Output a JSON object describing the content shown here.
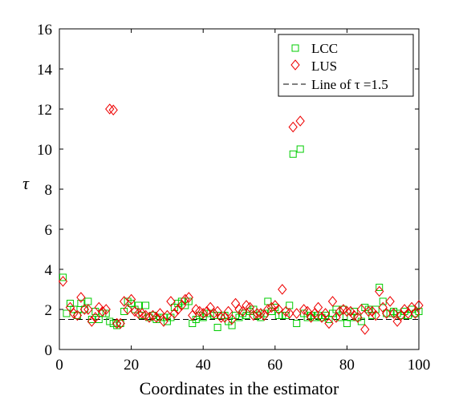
{
  "chart_data": {
    "type": "scatter",
    "xlabel": "Coordinates in the estimator",
    "ylabel": "τ",
    "xlim": [
      0,
      100
    ],
    "ylim": [
      0,
      16
    ],
    "xticks": [
      0,
      20,
      40,
      60,
      80,
      100
    ],
    "yticks": [
      0,
      2,
      4,
      6,
      8,
      10,
      12,
      14,
      16
    ],
    "grid": false,
    "legend_position": "top-right",
    "series": [
      {
        "name": "LCC",
        "marker": "square",
        "color": "#00cc00",
        "x": [
          1,
          2,
          3,
          4,
          5,
          6,
          7,
          8,
          9,
          10,
          11,
          12,
          13,
          14,
          15,
          16,
          17,
          18,
          19,
          20,
          21,
          22,
          23,
          24,
          25,
          26,
          27,
          28,
          29,
          30,
          31,
          32,
          33,
          34,
          35,
          36,
          37,
          38,
          39,
          40,
          41,
          42,
          43,
          44,
          45,
          46,
          47,
          48,
          49,
          50,
          51,
          52,
          53,
          54,
          55,
          56,
          57,
          58,
          59,
          60,
          61,
          62,
          63,
          64,
          65,
          66,
          67,
          68,
          69,
          70,
          71,
          72,
          73,
          74,
          75,
          76,
          77,
          78,
          79,
          80,
          81,
          82,
          83,
          84,
          85,
          86,
          87,
          88,
          89,
          90,
          91,
          92,
          93,
          94,
          95,
          96,
          97,
          98,
          99,
          100
        ],
        "y": [
          3.6,
          1.8,
          2.3,
          2.0,
          1.7,
          2.3,
          2.0,
          2.4,
          1.5,
          1.9,
          1.5,
          1.8,
          1.8,
          1.4,
          1.3,
          1.2,
          1.3,
          1.9,
          2.4,
          2.3,
          2.0,
          2.2,
          1.7,
          2.2,
          1.6,
          1.7,
          1.5,
          1.6,
          1.6,
          1.4,
          1.6,
          2.1,
          2.3,
          2.4,
          2.2,
          2.4,
          1.3,
          1.5,
          1.7,
          1.6,
          1.8,
          1.8,
          1.7,
          1.1,
          1.7,
          1.7,
          1.4,
          1.2,
          1.7,
          1.6,
          1.8,
          1.7,
          1.9,
          2.0,
          1.7,
          1.6,
          1.8,
          2.4,
          1.9,
          2.1,
          1.7,
          1.7,
          1.7,
          2.2,
          9.75,
          1.3,
          10.0,
          1.8,
          1.6,
          1.7,
          1.6,
          1.7,
          1.6,
          1.7,
          1.5,
          1.8,
          2.0,
          1.6,
          2.0,
          1.3,
          1.6,
          1.9,
          1.6,
          1.4,
          2.1,
          2.0,
          1.7,
          2.0,
          3.1,
          2.4,
          1.8,
          1.8,
          1.9,
          1.8,
          1.7,
          1.9,
          1.7,
          2.0,
          1.8,
          1.9
        ]
      },
      {
        "name": "LUS",
        "marker": "diamond",
        "color": "#ee0000",
        "x": [
          1,
          3,
          4,
          5,
          6,
          7,
          8,
          9,
          10,
          11,
          12,
          13,
          14,
          15,
          16,
          17,
          18,
          19,
          20,
          21,
          22,
          23,
          24,
          25,
          26,
          27,
          28,
          29,
          30,
          31,
          32,
          33,
          34,
          35,
          36,
          37,
          38,
          39,
          40,
          41,
          42,
          43,
          44,
          45,
          46,
          47,
          48,
          49,
          50,
          51,
          52,
          53,
          54,
          55,
          56,
          57,
          58,
          59,
          60,
          61,
          62,
          63,
          64,
          65,
          66,
          67,
          68,
          69,
          70,
          71,
          72,
          73,
          74,
          75,
          76,
          77,
          78,
          79,
          80,
          81,
          82,
          83,
          84,
          85,
          86,
          87,
          88,
          89,
          90,
          91,
          92,
          93,
          94,
          95,
          96,
          97,
          98,
          99,
          100
        ],
        "y": [
          3.4,
          2.1,
          1.8,
          1.7,
          2.6,
          2.0,
          2.0,
          1.4,
          1.6,
          2.1,
          1.9,
          2.0,
          12.0,
          11.95,
          1.3,
          1.3,
          2.4,
          2.0,
          2.5,
          1.9,
          1.8,
          1.8,
          1.7,
          1.6,
          1.7,
          1.6,
          1.8,
          1.4,
          1.7,
          2.4,
          1.8,
          2.0,
          2.2,
          2.5,
          2.6,
          1.7,
          2.0,
          1.9,
          1.8,
          1.9,
          2.1,
          1.8,
          1.9,
          1.6,
          1.6,
          1.9,
          1.5,
          2.3,
          2.0,
          1.9,
          2.2,
          2.1,
          1.7,
          1.8,
          1.8,
          1.7,
          2.0,
          2.1,
          2.2,
          2.0,
          3.0,
          1.9,
          1.8,
          11.1,
          1.8,
          11.4,
          2.0,
          1.9,
          1.6,
          1.8,
          2.1,
          1.6,
          1.8,
          1.3,
          2.4,
          1.6,
          1.9,
          2.0,
          1.9,
          1.9,
          1.7,
          1.6,
          2.0,
          1.0,
          1.9,
          1.9,
          1.7,
          2.9,
          2.1,
          1.8,
          2.4,
          1.8,
          1.4,
          1.7,
          2.0,
          1.8,
          2.1,
          1.8,
          2.2
        ]
      },
      {
        "name": "Line of τ =1.5",
        "marker": "dashed-line",
        "color": "#000000",
        "y": 1.5
      }
    ]
  }
}
